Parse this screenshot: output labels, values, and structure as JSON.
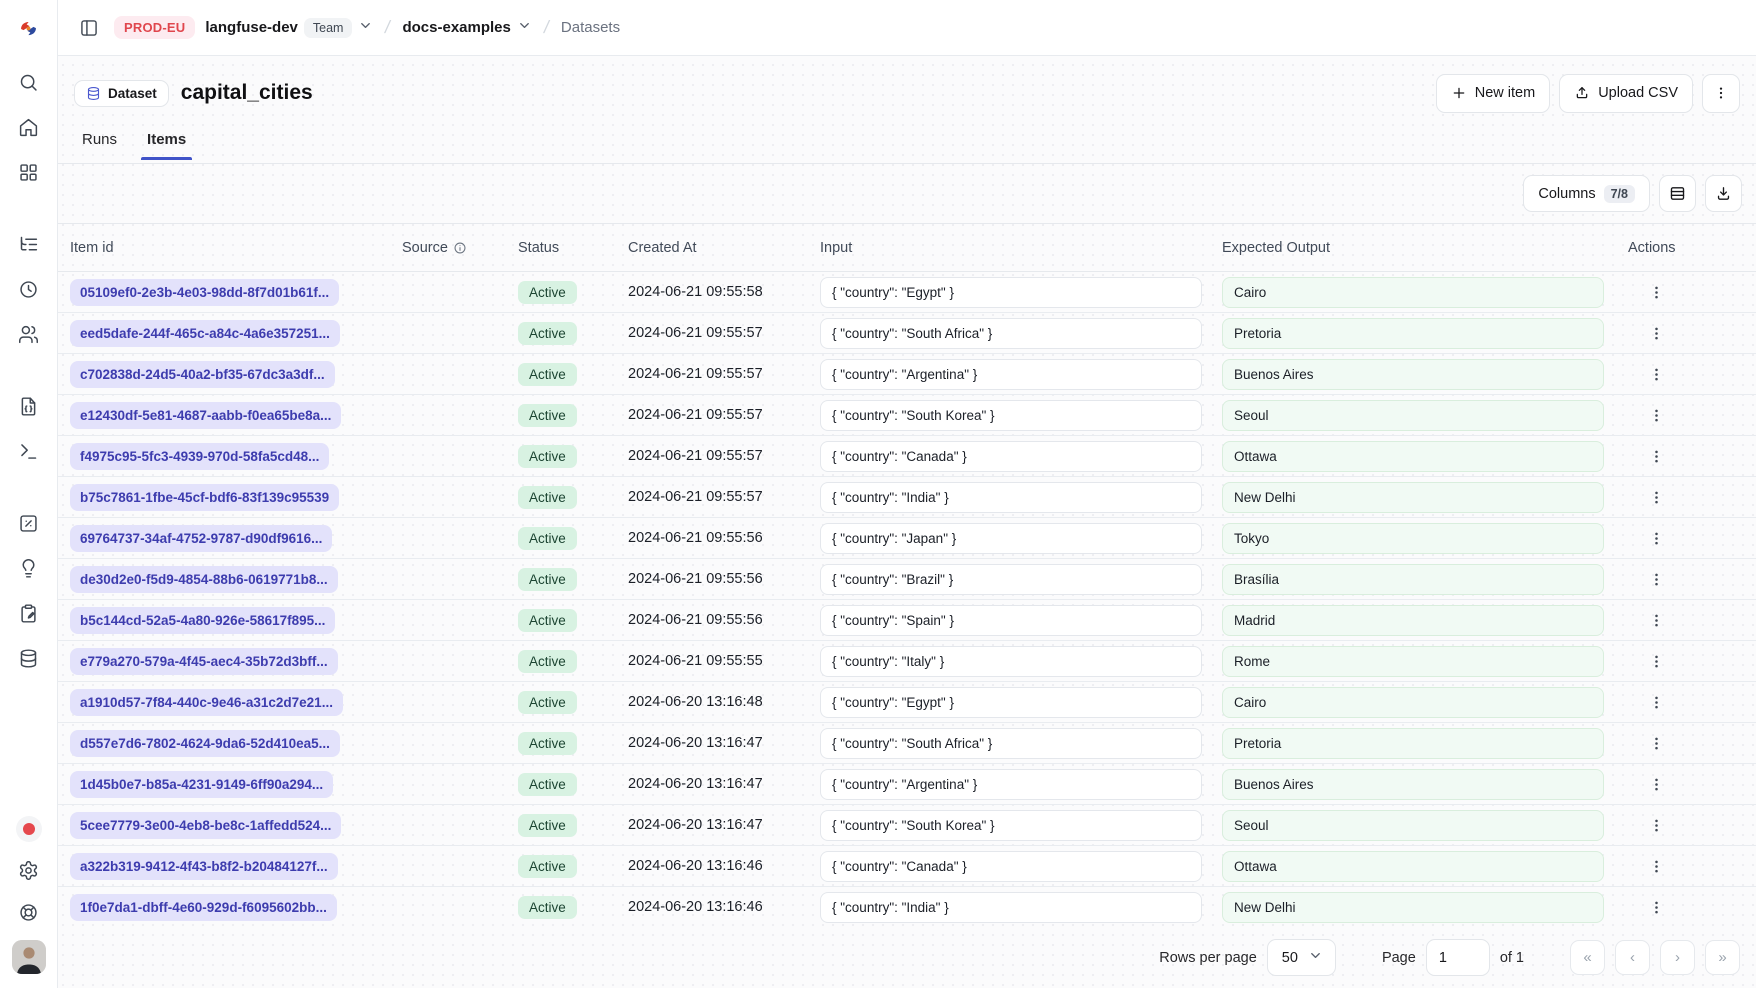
{
  "topbar": {
    "env_badge": "PROD-EU",
    "org_name": "langfuse-dev",
    "org_type": "Team",
    "project_name": "docs-examples",
    "section": "Datasets"
  },
  "page": {
    "entity_badge": "Dataset",
    "title": "capital_cities",
    "tabs": [
      {
        "label": "Runs"
      },
      {
        "label": "Items"
      }
    ],
    "active_tab": "Items",
    "actions": {
      "new_item_label": "New item",
      "upload_csv_label": "Upload CSV"
    }
  },
  "toolbar": {
    "columns_label": "Columns",
    "columns_badge": "7/8"
  },
  "sidebar": {
    "icons": [
      "search-icon",
      "home-icon",
      "dashboard-grid-icon",
      "tracing-list-tree-icon",
      "sessions-clock-icon",
      "users-icon",
      "prompts-file-json-icon",
      "playground-terminal-icon",
      "evaluation-square-percent-icon",
      "ideas-lightbulb-icon",
      "annotation-clipboard-pen-icon",
      "datasets-database-icon"
    ],
    "footer_icons": [
      "recording-status-dot",
      "settings-gear-icon",
      "support-lifebuoy-icon",
      "user-avatar"
    ]
  },
  "table": {
    "columns": [
      "Item id",
      "Source",
      "Status",
      "Created At",
      "Input",
      "Expected Output",
      "Actions"
    ],
    "rows": [
      {
        "id": "05109ef0-2e3b-4e03-98dd-8f7d01b61f...",
        "status": "Active",
        "created_at": "2024-06-21 09:55:58",
        "input": "{ \"country\": \"Egypt\" }",
        "expected_output": "Cairo"
      },
      {
        "id": "eed5dafe-244f-465c-a84c-4a6e357251...",
        "status": "Active",
        "created_at": "2024-06-21 09:55:57",
        "input": "{ \"country\": \"South Africa\" }",
        "expected_output": "Pretoria"
      },
      {
        "id": "c702838d-24d5-40a2-bf35-67dc3a3df...",
        "status": "Active",
        "created_at": "2024-06-21 09:55:57",
        "input": "{ \"country\": \"Argentina\" }",
        "expected_output": "Buenos Aires"
      },
      {
        "id": "e12430df-5e81-4687-aabb-f0ea65be8a...",
        "status": "Active",
        "created_at": "2024-06-21 09:55:57",
        "input": "{ \"country\": \"South Korea\" }",
        "expected_output": "Seoul"
      },
      {
        "id": "f4975c95-5fc3-4939-970d-58fa5cd48...",
        "status": "Active",
        "created_at": "2024-06-21 09:55:57",
        "input": "{ \"country\": \"Canada\" }",
        "expected_output": "Ottawa"
      },
      {
        "id": "b75c7861-1fbe-45cf-bdf6-83f139c95539",
        "status": "Active",
        "created_at": "2024-06-21 09:55:57",
        "input": "{ \"country\": \"India\" }",
        "expected_output": "New Delhi"
      },
      {
        "id": "69764737-34af-4752-9787-d90df9616...",
        "status": "Active",
        "created_at": "2024-06-21 09:55:56",
        "input": "{ \"country\": \"Japan\" }",
        "expected_output": "Tokyo"
      },
      {
        "id": "de30d2e0-f5d9-4854-88b6-0619771b8...",
        "status": "Active",
        "created_at": "2024-06-21 09:55:56",
        "input": "{ \"country\": \"Brazil\" }",
        "expected_output": "Brasília"
      },
      {
        "id": "b5c144cd-52a5-4a80-926e-58617f895...",
        "status": "Active",
        "created_at": "2024-06-21 09:55:56",
        "input": "{ \"country\": \"Spain\" }",
        "expected_output": "Madrid"
      },
      {
        "id": "e779a270-579a-4f45-aec4-35b72d3bff...",
        "status": "Active",
        "created_at": "2024-06-21 09:55:55",
        "input": "{ \"country\": \"Italy\" }",
        "expected_output": "Rome"
      },
      {
        "id": "a1910d57-7f84-440c-9e46-a31c2d7e21...",
        "status": "Active",
        "created_at": "2024-06-20 13:16:48",
        "input": "{ \"country\": \"Egypt\" }",
        "expected_output": "Cairo"
      },
      {
        "id": "d557e7d6-7802-4624-9da6-52d410ea5...",
        "status": "Active",
        "created_at": "2024-06-20 13:16:47",
        "input": "{ \"country\": \"South Africa\" }",
        "expected_output": "Pretoria"
      },
      {
        "id": "1d45b0e7-b85a-4231-9149-6ff90a294...",
        "status": "Active",
        "created_at": "2024-06-20 13:16:47",
        "input": "{ \"country\": \"Argentina\" }",
        "expected_output": "Buenos Aires"
      },
      {
        "id": "5cee7779-3e00-4eb8-be8c-1affedd524...",
        "status": "Active",
        "created_at": "2024-06-20 13:16:47",
        "input": "{ \"country\": \"South Korea\" }",
        "expected_output": "Seoul"
      },
      {
        "id": "a322b319-9412-4f43-b8f2-b20484127f...",
        "status": "Active",
        "created_at": "2024-06-20 13:16:46",
        "input": "{ \"country\": \"Canada\" }",
        "expected_output": "Ottawa"
      },
      {
        "id": "1f0e7da1-dbff-4e60-929d-f6095602bb...",
        "status": "Active",
        "created_at": "2024-06-20 13:16:46",
        "input": "{ \"country\": \"India\" }",
        "expected_output": "New Delhi"
      }
    ]
  },
  "pagination": {
    "rows_per_page_label": "Rows per page",
    "rows_per_page_value": "50",
    "page_label": "Page",
    "page_value": "1",
    "total_label": "of 1"
  },
  "colors": {
    "accent_indigo": "#4053c8",
    "env_badge_bg": "#fdebf0",
    "env_badge_text": "#e0464d",
    "id_pill_bg": "#e3e2fb",
    "id_pill_text": "#3d3cae",
    "status_active_bg": "#d8f2e2",
    "status_active_text": "#1c4532",
    "expected_output_bg": "#f1faf4"
  }
}
